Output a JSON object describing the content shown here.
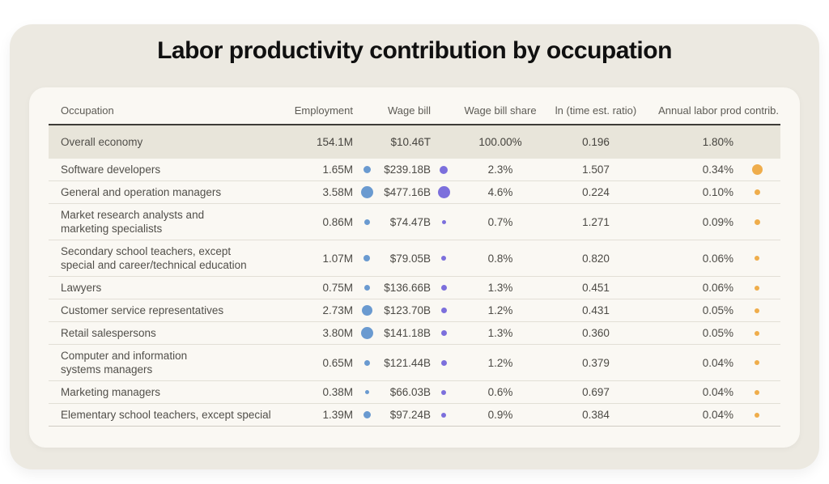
{
  "page_title": "Labor productivity contribution by occupation",
  "colors": {
    "employment_dot": "#6A9AD0",
    "wage_dot": "#7C6FDC",
    "contrib_dot": "#EFAD4B",
    "outer_card_bg": "#ECE9E1",
    "inner_card_bg": "#FAF8F3",
    "highlight_row_bg": "#E8E5DA"
  },
  "chart_data": {
    "type": "table",
    "title": "Labor productivity contribution by occupation",
    "columns": [
      "Occupation",
      "Employment",
      "Wage bill",
      "Wage bill share",
      "ln (time est. ratio)",
      "Annual labor prod contrib."
    ],
    "bubble_encoding": {
      "employment": "blue bubble sized by employment count",
      "wage_bill": "purple bubble sized by wage bill",
      "annual_contrib": "orange bubble sized by annual labor productivity contribution"
    },
    "summary_row": {
      "occupation": "Overall economy",
      "employment": "154.1M",
      "wage_bill": "$10.46T",
      "wage_bill_share": "100.00%",
      "ln_ratio": "0.196",
      "contrib": "1.80%"
    },
    "rows": [
      {
        "occupation": "Software developers",
        "employment": "1.65M",
        "emp_dot": 9,
        "wage_bill": "$239.18B",
        "wage_dot": 10,
        "wage_bill_share": "2.3%",
        "ln_ratio": "1.507",
        "contrib": "0.34%",
        "contrib_dot": 13
      },
      {
        "occupation": "General and operation managers",
        "employment": "3.58M",
        "emp_dot": 15,
        "wage_bill": "$477.16B",
        "wage_dot": 15,
        "wage_bill_share": "4.6%",
        "ln_ratio": "0.224",
        "contrib": "0.10%",
        "contrib_dot": 7
      },
      {
        "occupation": "Market research analysts and\nmarketing specialists",
        "employment": "0.86M",
        "emp_dot": 7,
        "wage_bill": "$74.47B",
        "wage_dot": 5,
        "wage_bill_share": "0.7%",
        "ln_ratio": "1.271",
        "contrib": "0.09%",
        "contrib_dot": 7
      },
      {
        "occupation": "Secondary school teachers, except\nspecial and career/technical education",
        "employment": "1.07M",
        "emp_dot": 8,
        "wage_bill": "$79.05B",
        "wage_dot": 6,
        "wage_bill_share": "0.8%",
        "ln_ratio": "0.820",
        "contrib": "0.06%",
        "contrib_dot": 6
      },
      {
        "occupation": "Lawyers",
        "employment": "0.75M",
        "emp_dot": 7,
        "wage_bill": "$136.66B",
        "wage_dot": 7,
        "wage_bill_share": "1.3%",
        "ln_ratio": "0.451",
        "contrib": "0.06%",
        "contrib_dot": 6
      },
      {
        "occupation": "Customer service representatives",
        "employment": "2.73M",
        "emp_dot": 13,
        "wage_bill": "$123.70B",
        "wage_dot": 7,
        "wage_bill_share": "1.2%",
        "ln_ratio": "0.431",
        "contrib": "0.05%",
        "contrib_dot": 6
      },
      {
        "occupation": "Retail salespersons",
        "employment": "3.80M",
        "emp_dot": 15,
        "wage_bill": "$141.18B",
        "wage_dot": 7,
        "wage_bill_share": "1.3%",
        "ln_ratio": "0.360",
        "contrib": "0.05%",
        "contrib_dot": 6
      },
      {
        "occupation": "Computer and information\nsystems managers",
        "employment": "0.65M",
        "emp_dot": 7,
        "wage_bill": "$121.44B",
        "wage_dot": 7,
        "wage_bill_share": "1.2%",
        "ln_ratio": "0.379",
        "contrib": "0.04%",
        "contrib_dot": 6
      },
      {
        "occupation": "Marketing managers",
        "employment": "0.38M",
        "emp_dot": 5,
        "wage_bill": "$66.03B",
        "wage_dot": 6,
        "wage_bill_share": "0.6%",
        "ln_ratio": "0.697",
        "contrib": "0.04%",
        "contrib_dot": 6
      },
      {
        "occupation": "Elementary school teachers, except special",
        "employment": "1.39M",
        "emp_dot": 9,
        "wage_bill": "$97.24B",
        "wage_dot": 6,
        "wage_bill_share": "0.9%",
        "ln_ratio": "0.384",
        "contrib": "0.04%",
        "contrib_dot": 6
      }
    ]
  }
}
